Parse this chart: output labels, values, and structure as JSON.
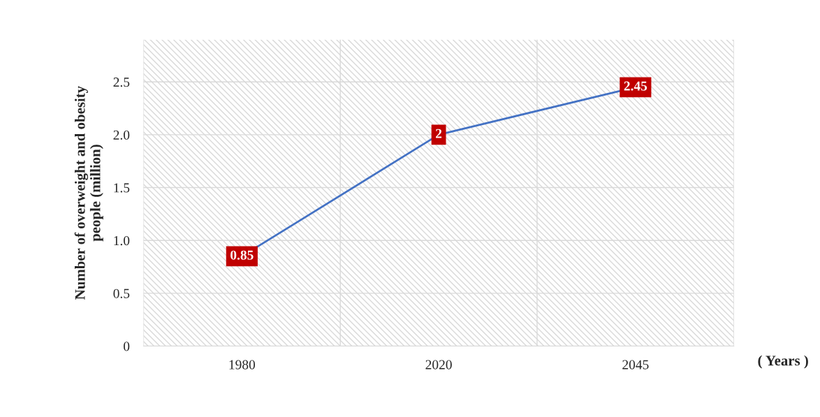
{
  "chart_data": {
    "type": "line",
    "ylabel": "Number of overweight and obesity\npeople (million)",
    "xlabel": "( Years )",
    "categories": [
      "1980",
      "2020",
      "2045"
    ],
    "series": [
      {
        "color": "#4472c4",
        "values": [
          0.85,
          2,
          2.45
        ]
      }
    ],
    "ylim": [
      0,
      2.9
    ],
    "yticks": [
      0,
      0.5,
      {
        "value": 1,
        "label": "1.0"
      },
      1.5,
      {
        "value": 2,
        "label": "2.0"
      },
      2.5
    ],
    "grid": true,
    "data_labels": true,
    "marker": "square"
  }
}
